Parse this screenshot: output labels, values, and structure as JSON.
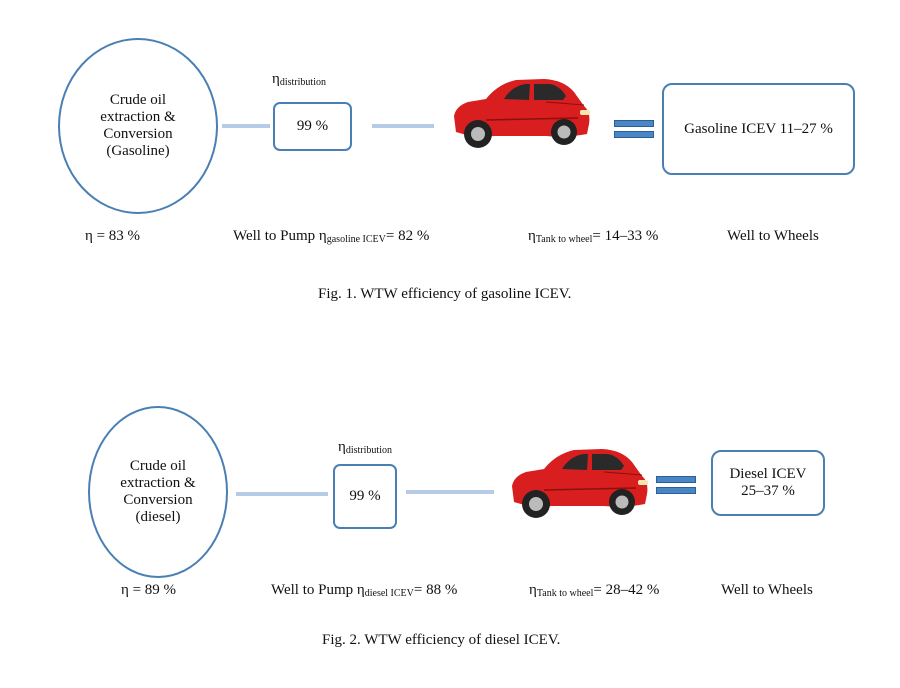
{
  "figures": [
    {
      "source_lines": [
        "Crude oil",
        "extraction &",
        "Conversion",
        "(Gasoline)"
      ],
      "distribution_symbol": "η",
      "distribution_sub": "distribution",
      "distribution_value": "99 %",
      "result_text": "Gasoline ICEV 11–27 %",
      "eta_source": "η = 83 %",
      "wtp_prefix": "Well to Pump η",
      "wtp_sub": "gasoline ICEV",
      "wtp_value": "= 82 %",
      "ttw_symbol": "η",
      "ttw_sub": "Tank to wheel",
      "ttw_value": "= 14–33 %",
      "wtw_label": "Well to Wheels",
      "caption": "Fig. 1. WTW efficiency of gasoline ICEV.",
      "colors": {
        "outline": "#4a7fb5",
        "arrow": "#b6cbe6",
        "car": "#d81e1e"
      }
    },
    {
      "source_lines": [
        "Crude oil",
        "extraction &",
        "Conversion",
        "(diesel)"
      ],
      "distribution_symbol": "η",
      "distribution_sub": "distribution",
      "distribution_value": "99 %",
      "result_lines": [
        "Diesel ICEV",
        "25–37 %"
      ],
      "eta_source": "η = 89 %",
      "wtp_prefix": "Well to Pump η",
      "wtp_sub": "diesel ICEV",
      "wtp_value": "= 88 %",
      "ttw_symbol": "η",
      "ttw_sub": "Tank to wheel",
      "ttw_value": "= 28–42 %",
      "wtw_label": "Well to Wheels",
      "caption": "Fig. 2. WTW efficiency of diesel ICEV.",
      "colors": {
        "outline": "#4a7fb5",
        "arrow": "#b6cbe6",
        "car": "#d81e1e"
      }
    }
  ]
}
